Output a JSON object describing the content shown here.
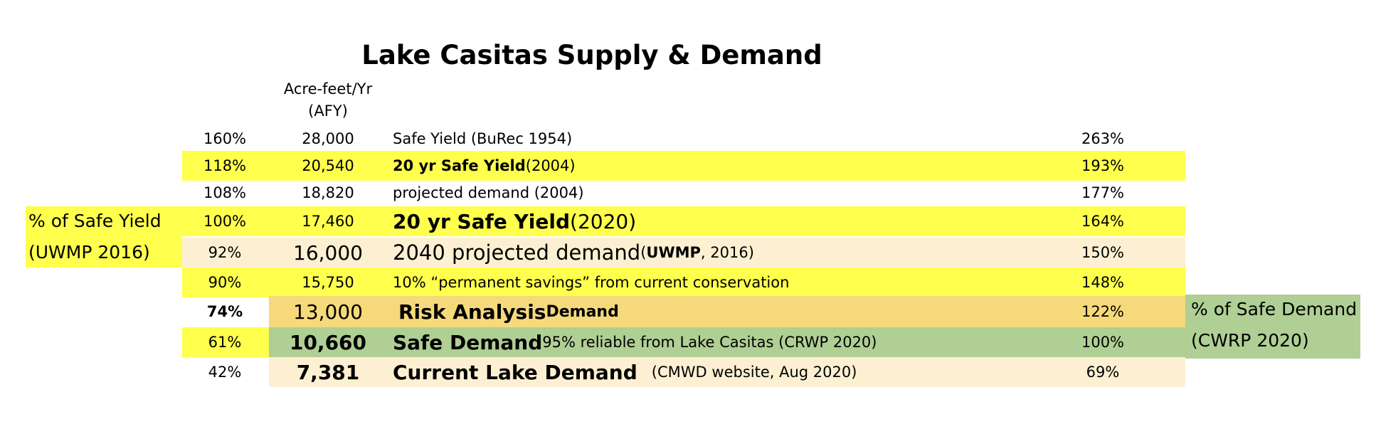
{
  "title": "Lake Casitas Supply & Demand",
  "afy_header": {
    "line1": "Acre-feet/Yr",
    "line2": "(AFY)"
  },
  "left_label": {
    "line1": "% of Safe Yield",
    "line2": "(UWMP 2016)"
  },
  "right_label": {
    "line1": "% of Safe Demand",
    "line2": "(CWRP 2020)"
  },
  "rows": [
    {
      "pct": "160%",
      "afy": "28,000",
      "desc_main": "Safe Yield (BuRec 1954)",
      "right_pct": "263%"
    },
    {
      "pct": "118%",
      "afy": "20,540",
      "desc_bold": "20 yr Safe Yield",
      "desc_rest": " (2004)",
      "right_pct": "193%"
    },
    {
      "pct": "108%",
      "afy": "18,820",
      "desc_main": "projected demand (2004)",
      "right_pct": "177%"
    },
    {
      "pct": "100%",
      "afy": "17,460",
      "desc_bold": "20 yr Safe Yield",
      "desc_rest": " (2020)",
      "right_pct": "164%"
    },
    {
      "pct": "92%",
      "afy": "16,000",
      "desc_main": "2040 projected demand",
      "desc_paren_open": " (",
      "desc_paren_bold": "UWMP",
      "desc_paren_rest": ", 2016)",
      "right_pct": "150%"
    },
    {
      "pct": "90%",
      "afy": "15,750",
      "desc_main": "10% “permanent savings” from current conservation",
      "right_pct": "148%"
    },
    {
      "pct": "74%",
      "afy": "13,000",
      "desc_bold": "Risk Analysis",
      "desc_bold_small": " Demand",
      "right_pct": "122%"
    },
    {
      "pct": "61%",
      "afy": "10,660",
      "desc_bold": "Safe Demand",
      "desc_rest": " 95% reliable from Lake Casitas (CRWP 2020)",
      "right_pct": "100%"
    },
    {
      "pct": "42%",
      "afy": "7,381",
      "desc_bold": "Current Lake Demand",
      "desc_rest": "   (CMWD website, Aug 2020)",
      "right_pct": "69%"
    }
  ],
  "colors": {
    "yellow": "#ffff4d",
    "cream": "#fdf0d2",
    "orange": "#f6d97a",
    "green": "#b0cf94"
  }
}
